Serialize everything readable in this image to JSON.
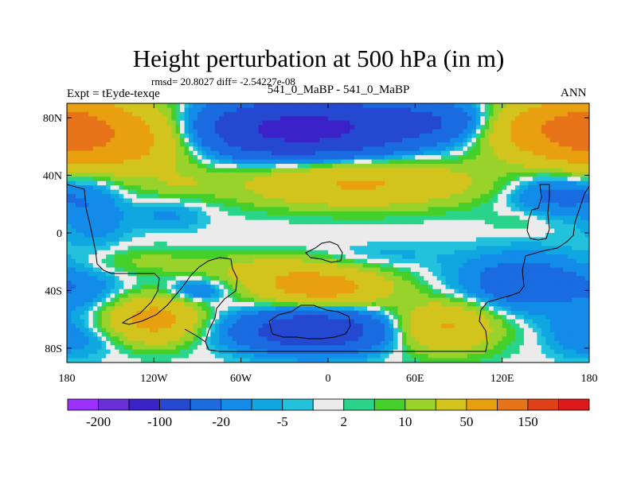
{
  "chart_data": {
    "type": "heatmap",
    "title": "Height perturbation at 500 hPa (in m)",
    "stats_line": "rmsd= 20.8027 diff= -2.54227e-08",
    "left_label": "Expt = tEyde-texqe",
    "center_label": "541_0_MaBP - 541_0_MaBP",
    "right_label": "ANN",
    "xlim": [
      -180,
      180
    ],
    "ylim": [
      -90,
      90
    ],
    "x_ticks": [
      {
        "value": -180,
        "label": "180"
      },
      {
        "value": -120,
        "label": "120W"
      },
      {
        "value": -60,
        "label": "60W"
      },
      {
        "value": 0,
        "label": "0"
      },
      {
        "value": 60,
        "label": "60E"
      },
      {
        "value": 120,
        "label": "120E"
      },
      {
        "value": 180,
        "label": "180"
      }
    ],
    "y_ticks": [
      {
        "value": 80,
        "label": "80N"
      },
      {
        "value": 40,
        "label": "40N"
      },
      {
        "value": 0,
        "label": "0"
      },
      {
        "value": -40,
        "label": "40S"
      },
      {
        "value": -80,
        "label": "80S"
      }
    ],
    "levels": [
      -200,
      -150,
      -100,
      -50,
      -20,
      -10,
      -5,
      -2,
      2,
      5,
      10,
      20,
      50,
      100,
      150,
      200
    ],
    "colorbar": {
      "colors": [
        "#9b30ff",
        "#6b2fd8",
        "#3a22c8",
        "#2448d0",
        "#1a6ae0",
        "#128ce8",
        "#0ea7e0",
        "#22c2dc",
        "#ebebeb",
        "#2ad48a",
        "#45cf2a",
        "#9ad22c",
        "#d2c41c",
        "#e8a010",
        "#e8741a",
        "#e04018",
        "#dc1a1a"
      ],
      "labels": [
        {
          "level": -200,
          "label": "-200"
        },
        {
          "level": -100,
          "label": "-100"
        },
        {
          "level": -20,
          "label": "-20"
        },
        {
          "level": -5,
          "label": "-5"
        },
        {
          "level": 2,
          "label": "2"
        },
        {
          "level": 10,
          "label": "10"
        },
        {
          "level": 50,
          "label": "50"
        },
        {
          "level": 150,
          "label": "150"
        }
      ]
    },
    "field_blobs": [
      {
        "lon": -150,
        "lat": 67,
        "rlon": 55,
        "rlat": 24,
        "amp": 90
      },
      {
        "lon": 150,
        "lat": 72,
        "rlon": 40,
        "rlat": 20,
        "amp": 75
      },
      {
        "lon": -20,
        "lat": 72,
        "rlon": 75,
        "rlat": 20,
        "amp": -120
      },
      {
        "lon": 70,
        "lat": 78,
        "rlon": 45,
        "rlat": 13,
        "amp": -35
      },
      {
        "lon": -175,
        "lat": 75,
        "rlon": 25,
        "rlat": 25,
        "amp": 40
      },
      {
        "lon": 20,
        "lat": 35,
        "rlon": 80,
        "rlat": 16,
        "amp": 55
      },
      {
        "lon": -100,
        "lat": 34,
        "rlon": 20,
        "rlat": 8,
        "amp": 12
      },
      {
        "lon": -160,
        "lat": 40,
        "rlon": 18,
        "rlat": 18,
        "amp": -10
      },
      {
        "lon": -160,
        "lat": 10,
        "rlon": 22,
        "rlat": 20,
        "amp": -15
      },
      {
        "lon": -110,
        "lat": 12,
        "rlon": 25,
        "rlat": 10,
        "amp": -12
      },
      {
        "lon": 160,
        "lat": 28,
        "rlon": 35,
        "rlat": 15,
        "amp": -30
      },
      {
        "lon": 130,
        "lat": 8,
        "rlon": 20,
        "rlat": 8,
        "amp": 6
      },
      {
        "lon": -40,
        "lat": -25,
        "rlon": 45,
        "rlat": 10,
        "amp": 25
      },
      {
        "lon": -5,
        "lat": -38,
        "rlon": 45,
        "rlat": 12,
        "amp": 70
      },
      {
        "lon": -125,
        "lat": -20,
        "rlon": 40,
        "rlat": 10,
        "amp": 12
      },
      {
        "lon": -120,
        "lat": -60,
        "rlon": 30,
        "rlat": 16,
        "amp": 65
      },
      {
        "lon": -165,
        "lat": -40,
        "rlon": 30,
        "rlat": 15,
        "amp": -12
      },
      {
        "lon": -90,
        "lat": -40,
        "rlon": 20,
        "rlat": 8,
        "amp": -25
      },
      {
        "lon": -10,
        "lat": -68,
        "rlon": 50,
        "rlat": 14,
        "amp": -90
      },
      {
        "lon": -165,
        "lat": -75,
        "rlon": 25,
        "rlat": 12,
        "amp": -10
      },
      {
        "lon": 80,
        "lat": -65,
        "rlon": 35,
        "rlat": 17,
        "amp": 55
      },
      {
        "lon": 135,
        "lat": -35,
        "rlon": 45,
        "rlat": 20,
        "amp": -35
      },
      {
        "lon": 170,
        "lat": -70,
        "rlon": 20,
        "rlat": 15,
        "amp": -15
      },
      {
        "lon": 40,
        "lat": -15,
        "rlon": 40,
        "rlat": 8,
        "amp": -6
      }
    ]
  }
}
